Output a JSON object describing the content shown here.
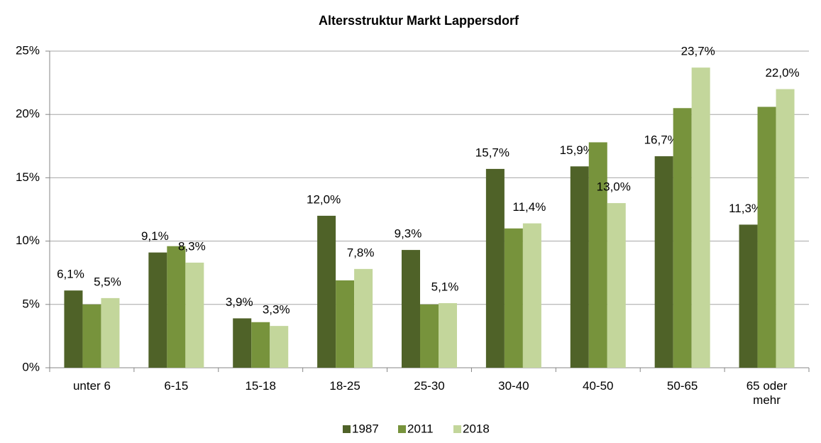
{
  "chart_data": {
    "type": "bar",
    "title": "Altersstruktur Markt Lappersdorf",
    "categories": [
      "unter 6",
      "6-15",
      "15-18",
      "18-25",
      "25-30",
      "30-40",
      "40-50",
      "50-65",
      "65 oder mehr"
    ],
    "series": [
      {
        "name": "1987",
        "color": "#4f6228",
        "values": [
          6.1,
          9.1,
          3.9,
          12.0,
          9.3,
          15.7,
          15.9,
          16.7,
          11.3
        ],
        "value_labels": [
          "6,1%",
          "9,1%",
          "3,9%",
          "12,0%",
          "9,3%",
          "15,7%",
          "15,9%",
          "16,7%",
          "11,3%"
        ]
      },
      {
        "name": "2011",
        "color": "#77933c",
        "values": [
          5.0,
          9.6,
          3.6,
          6.9,
          5.0,
          11.0,
          17.8,
          20.5,
          20.6
        ]
      },
      {
        "name": "2018",
        "color": "#c3d69b",
        "values": [
          5.5,
          8.3,
          3.3,
          7.8,
          5.1,
          11.4,
          13.0,
          23.7,
          22.0
        ],
        "value_labels": [
          "5,5%",
          "8,3%",
          "3,3%",
          "7,8%",
          "5,1%",
          "11,4%",
          "13,0%",
          "23,7%",
          "22,0%"
        ]
      }
    ],
    "ylim": [
      0,
      25
    ],
    "yticks": [
      {
        "value": 0,
        "label": "0%"
      },
      {
        "value": 5,
        "label": "5%"
      },
      {
        "value": 10,
        "label": "10%"
      },
      {
        "value": 15,
        "label": "15%"
      },
      {
        "value": 20,
        "label": "20%"
      },
      {
        "value": 25,
        "label": "25%"
      }
    ],
    "grid": true,
    "legend": "bottom"
  }
}
